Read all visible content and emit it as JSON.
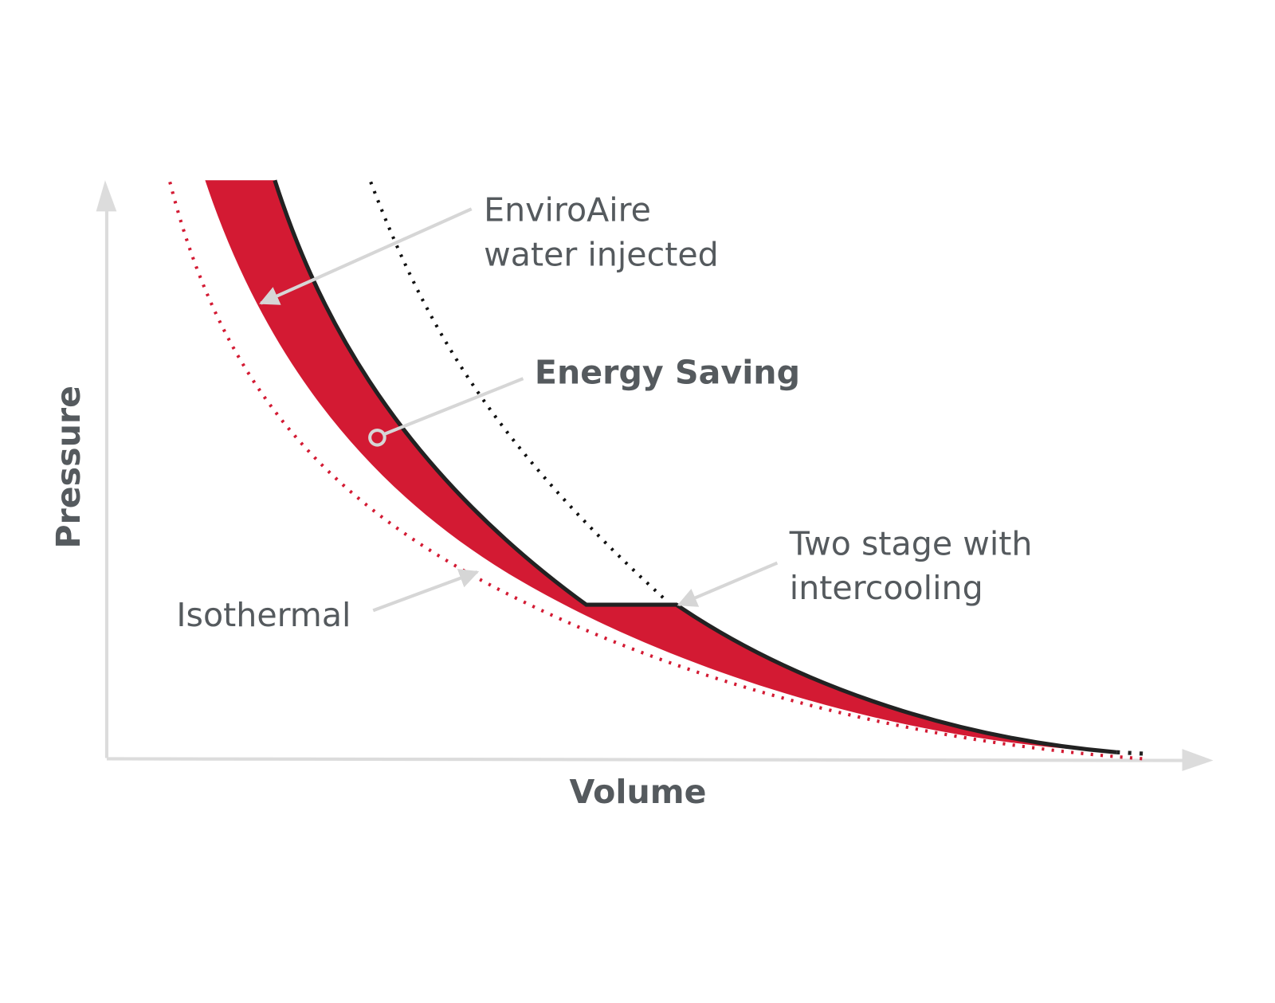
{
  "axes": {
    "x_label": "Volume",
    "y_label": "Pressure"
  },
  "annotations": {
    "enviroaire": [
      "EnviroAire",
      "water injected"
    ],
    "energy_saving": "Energy Saving",
    "two_stage": [
      "Two stage with",
      "intercooling"
    ],
    "isothermal": "Isothermal"
  }
}
